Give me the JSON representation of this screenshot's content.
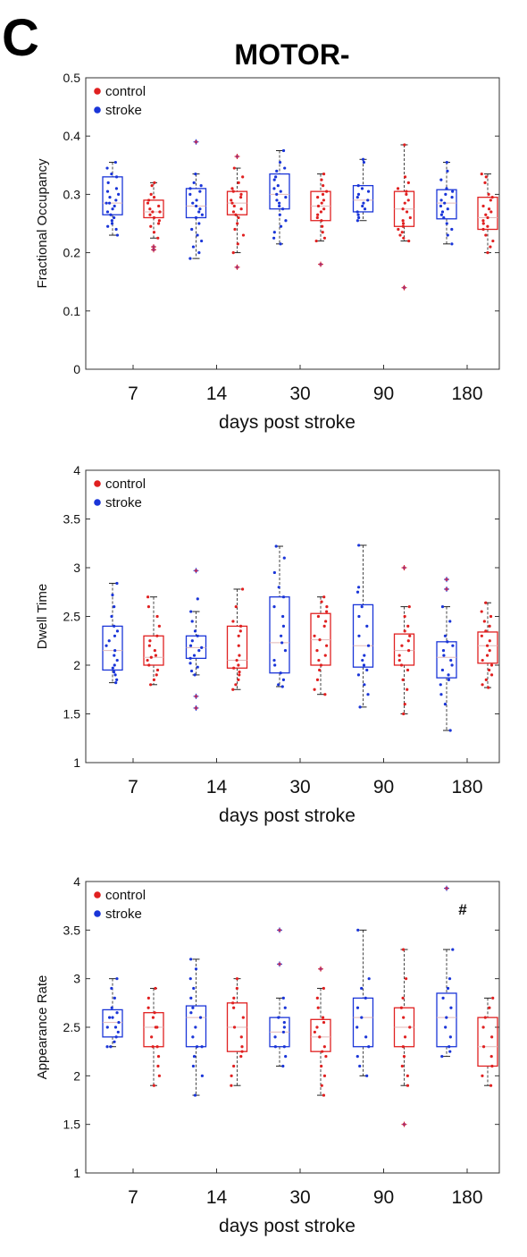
{
  "panel_label": "C",
  "title": "MOTOR-",
  "colors": {
    "control": "#e02020",
    "stroke": "#1a35d8"
  },
  "chart_data": [
    {
      "type": "box",
      "ylabel": "Fractional Occupancy",
      "xlabel": "days post stroke",
      "categories": [
        "7",
        "14",
        "30",
        "90",
        "180"
      ],
      "ylim": [
        0,
        0.5
      ],
      "yticks": [
        "0",
        "0.1",
        "0.2",
        "0.3",
        "0.4",
        "0.5"
      ],
      "legend": {
        "position": "top-left",
        "entries": [
          "control",
          "stroke"
        ]
      },
      "annotation": "",
      "groups": [
        {
          "category": "7",
          "series": "stroke",
          "q1": 0.265,
          "median": 0.285,
          "q3": 0.33,
          "whisker_low": 0.23,
          "whisker_high": 0.355,
          "outliers": [],
          "points": [
            0.355,
            0.345,
            0.335,
            0.33,
            0.32,
            0.31,
            0.305,
            0.3,
            0.295,
            0.29,
            0.285,
            0.285,
            0.28,
            0.275,
            0.27,
            0.265,
            0.26,
            0.255,
            0.25,
            0.245,
            0.24,
            0.23
          ]
        },
        {
          "category": "7",
          "series": "control",
          "q1": 0.26,
          "median": 0.27,
          "q3": 0.29,
          "whisker_low": 0.225,
          "whisker_high": 0.32,
          "outliers": [
            0.21,
            0.205
          ],
          "points": [
            0.32,
            0.315,
            0.3,
            0.295,
            0.29,
            0.285,
            0.28,
            0.275,
            0.27,
            0.27,
            0.265,
            0.26,
            0.255,
            0.25,
            0.245,
            0.235,
            0.225
          ]
        },
        {
          "category": "14",
          "series": "stroke",
          "q1": 0.26,
          "median": 0.28,
          "q3": 0.31,
          "whisker_low": 0.19,
          "whisker_high": 0.335,
          "outliers": [
            0.39
          ],
          "points": [
            0.335,
            0.32,
            0.315,
            0.31,
            0.305,
            0.3,
            0.29,
            0.285,
            0.28,
            0.275,
            0.27,
            0.265,
            0.26,
            0.25,
            0.24,
            0.23,
            0.22,
            0.21,
            0.2,
            0.19
          ]
        },
        {
          "category": "14",
          "series": "control",
          "q1": 0.265,
          "median": 0.285,
          "q3": 0.305,
          "whisker_low": 0.2,
          "whisker_high": 0.345,
          "outliers": [
            0.365,
            0.175
          ],
          "points": [
            0.345,
            0.33,
            0.32,
            0.31,
            0.305,
            0.3,
            0.295,
            0.29,
            0.285,
            0.28,
            0.275,
            0.27,
            0.265,
            0.26,
            0.25,
            0.24,
            0.23,
            0.215,
            0.2
          ]
        },
        {
          "category": "30",
          "series": "stroke",
          "q1": 0.275,
          "median": 0.3,
          "q3": 0.335,
          "whisker_low": 0.215,
          "whisker_high": 0.375,
          "outliers": [],
          "points": [
            0.375,
            0.355,
            0.345,
            0.34,
            0.33,
            0.325,
            0.315,
            0.31,
            0.305,
            0.3,
            0.295,
            0.29,
            0.285,
            0.28,
            0.275,
            0.265,
            0.255,
            0.245,
            0.235,
            0.225,
            0.215
          ]
        },
        {
          "category": "30",
          "series": "control",
          "q1": 0.255,
          "median": 0.28,
          "q3": 0.305,
          "whisker_low": 0.22,
          "whisker_high": 0.335,
          "outliers": [
            0.18
          ],
          "points": [
            0.335,
            0.325,
            0.315,
            0.305,
            0.3,
            0.295,
            0.29,
            0.285,
            0.28,
            0.275,
            0.27,
            0.265,
            0.26,
            0.255,
            0.245,
            0.235,
            0.225,
            0.22
          ]
        },
        {
          "category": "90",
          "series": "stroke",
          "q1": 0.27,
          "median": 0.29,
          "q3": 0.315,
          "whisker_low": 0.255,
          "whisker_high": 0.36,
          "outliers": [],
          "points": [
            0.36,
            0.355,
            0.315,
            0.31,
            0.305,
            0.3,
            0.295,
            0.29,
            0.285,
            0.28,
            0.275,
            0.27,
            0.265,
            0.26,
            0.255
          ]
        },
        {
          "category": "90",
          "series": "control",
          "q1": 0.245,
          "median": 0.275,
          "q3": 0.305,
          "whisker_low": 0.22,
          "whisker_high": 0.385,
          "outliers": [
            0.14
          ],
          "points": [
            0.385,
            0.33,
            0.32,
            0.31,
            0.305,
            0.3,
            0.29,
            0.285,
            0.275,
            0.27,
            0.26,
            0.255,
            0.25,
            0.245,
            0.24,
            0.235,
            0.23,
            0.225,
            0.22
          ]
        },
        {
          "category": "180",
          "series": "stroke",
          "q1": 0.258,
          "median": 0.285,
          "q3": 0.308,
          "whisker_low": 0.215,
          "whisker_high": 0.355,
          "outliers": [],
          "points": [
            0.355,
            0.34,
            0.325,
            0.31,
            0.305,
            0.3,
            0.295,
            0.29,
            0.285,
            0.28,
            0.275,
            0.27,
            0.265,
            0.26,
            0.25,
            0.24,
            0.23,
            0.215
          ]
        },
        {
          "category": "180",
          "series": "control",
          "q1": 0.24,
          "median": 0.26,
          "q3": 0.295,
          "whisker_low": 0.2,
          "whisker_high": 0.335,
          "outliers": [],
          "points": [
            0.335,
            0.33,
            0.32,
            0.3,
            0.295,
            0.29,
            0.28,
            0.275,
            0.27,
            0.265,
            0.26,
            0.255,
            0.25,
            0.245,
            0.24,
            0.23,
            0.22,
            0.21,
            0.2
          ]
        }
      ]
    },
    {
      "type": "box",
      "ylabel": "Dwell Time",
      "xlabel": "days post stroke",
      "categories": [
        "7",
        "14",
        "30",
        "90",
        "180"
      ],
      "ylim": [
        1,
        4
      ],
      "yticks": [
        "1",
        "1.5",
        "2",
        "2.5",
        "3",
        "3.5",
        "4"
      ],
      "legend": {
        "position": "top-left",
        "entries": [
          "control",
          "stroke"
        ]
      },
      "annotation": "",
      "groups": [
        {
          "category": "7",
          "series": "stroke",
          "q1": 1.95,
          "median": 2.15,
          "q3": 2.4,
          "whisker_low": 1.82,
          "whisker_high": 2.84,
          "outliers": [],
          "points": [
            2.84,
            2.72,
            2.6,
            2.5,
            2.4,
            2.35,
            2.3,
            2.25,
            2.2,
            2.15,
            2.1,
            2.05,
            2.0,
            1.97,
            1.93,
            1.9,
            1.85,
            1.82
          ]
        },
        {
          "category": "7",
          "series": "control",
          "q1": 2.0,
          "median": 2.08,
          "q3": 2.3,
          "whisker_low": 1.8,
          "whisker_high": 2.7,
          "outliers": [],
          "points": [
            2.7,
            2.6,
            2.5,
            2.4,
            2.3,
            2.25,
            2.2,
            2.15,
            2.1,
            2.08,
            2.05,
            2.0,
            1.95,
            1.9,
            1.85,
            1.8
          ]
        },
        {
          "category": "14",
          "series": "stroke",
          "q1": 2.07,
          "median": 2.18,
          "q3": 2.3,
          "whisker_low": 1.9,
          "whisker_high": 2.55,
          "outliers": [
            2.97,
            1.68,
            1.56
          ],
          "points": [
            2.68,
            2.55,
            2.45,
            2.35,
            2.3,
            2.25,
            2.2,
            2.18,
            2.15,
            2.1,
            2.07,
            2.02,
            1.98,
            1.94,
            1.9
          ]
        },
        {
          "category": "14",
          "series": "control",
          "q1": 1.97,
          "median": 2.05,
          "q3": 2.4,
          "whisker_low": 1.75,
          "whisker_high": 2.78,
          "outliers": [],
          "points": [
            2.78,
            2.6,
            2.45,
            2.4,
            2.35,
            2.3,
            2.2,
            2.1,
            2.05,
            2.0,
            1.97,
            1.93,
            1.9,
            1.85,
            1.8,
            1.75
          ]
        },
        {
          "category": "30",
          "series": "stroke",
          "q1": 1.92,
          "median": 2.23,
          "q3": 2.7,
          "whisker_low": 1.78,
          "whisker_high": 3.22,
          "outliers": [],
          "points": [
            3.22,
            3.1,
            2.95,
            2.8,
            2.7,
            2.6,
            2.5,
            2.4,
            2.3,
            2.23,
            2.15,
            2.05,
            2.0,
            1.92,
            1.85,
            1.8,
            1.78
          ]
        },
        {
          "category": "30",
          "series": "control",
          "q1": 2.0,
          "median": 2.26,
          "q3": 2.53,
          "whisker_low": 1.7,
          "whisker_high": 2.7,
          "outliers": [],
          "points": [
            2.7,
            2.65,
            2.6,
            2.55,
            2.5,
            2.45,
            2.4,
            2.3,
            2.26,
            2.2,
            2.15,
            2.1,
            2.05,
            2.0,
            1.95,
            1.85,
            1.75,
            1.7
          ]
        },
        {
          "category": "90",
          "series": "stroke",
          "q1": 1.98,
          "median": 2.2,
          "q3": 2.62,
          "whisker_low": 1.57,
          "whisker_high": 3.23,
          "outliers": [],
          "points": [
            3.23,
            2.8,
            2.75,
            2.6,
            2.5,
            2.4,
            2.3,
            2.2,
            2.1,
            2.05,
            2.0,
            1.95,
            1.9,
            1.8,
            1.7,
            1.57
          ]
        },
        {
          "category": "90",
          "series": "control",
          "q1": 2.0,
          "median": 2.15,
          "q3": 2.32,
          "whisker_low": 1.5,
          "whisker_high": 2.6,
          "outliers": [
            3.0
          ],
          "points": [
            2.6,
            2.5,
            2.4,
            2.35,
            2.3,
            2.25,
            2.2,
            2.15,
            2.1,
            2.05,
            2.0,
            1.95,
            1.85,
            1.75,
            1.6,
            1.5
          ]
        },
        {
          "category": "180",
          "series": "stroke",
          "q1": 1.87,
          "median": 2.08,
          "q3": 2.24,
          "whisker_low": 1.33,
          "whisker_high": 2.6,
          "outliers": [
            2.88,
            2.78
          ],
          "points": [
            2.6,
            2.45,
            2.3,
            2.24,
            2.2,
            2.15,
            2.1,
            2.05,
            2.0,
            1.95,
            1.9,
            1.85,
            1.8,
            1.7,
            1.6,
            1.33
          ]
        },
        {
          "category": "180",
          "series": "control",
          "q1": 2.02,
          "median": 2.2,
          "q3": 2.34,
          "whisker_low": 1.77,
          "whisker_high": 2.64,
          "outliers": [],
          "points": [
            2.64,
            2.55,
            2.5,
            2.45,
            2.4,
            2.35,
            2.3,
            2.25,
            2.2,
            2.15,
            2.1,
            2.05,
            2.0,
            1.95,
            1.9,
            1.85,
            1.8,
            1.77
          ]
        }
      ]
    },
    {
      "type": "box",
      "ylabel": "Appearance Rate",
      "xlabel": "days post stroke",
      "categories": [
        "7",
        "14",
        "30",
        "90",
        "180"
      ],
      "ylim": [
        1,
        4
      ],
      "yticks": [
        "1",
        "1.5",
        "2",
        "2.5",
        "3",
        "3.5",
        "4"
      ],
      "legend": {
        "position": "top-left",
        "entries": [
          "control",
          "stroke"
        ]
      },
      "annotation": "#",
      "groups": [
        {
          "category": "7",
          "series": "stroke",
          "q1": 2.4,
          "median": 2.55,
          "q3": 2.68,
          "whisker_low": 2.3,
          "whisker_high": 3.0,
          "outliers": [],
          "points": [
            3.0,
            2.9,
            2.8,
            2.7,
            2.65,
            2.6,
            2.6,
            2.55,
            2.5,
            2.5,
            2.45,
            2.4,
            2.35,
            2.3,
            2.3
          ]
        },
        {
          "category": "7",
          "series": "control",
          "q1": 2.3,
          "median": 2.5,
          "q3": 2.65,
          "whisker_low": 1.9,
          "whisker_high": 2.9,
          "outliers": [],
          "points": [
            2.9,
            2.8,
            2.7,
            2.65,
            2.6,
            2.5,
            2.5,
            2.4,
            2.3,
            2.3,
            2.2,
            2.1,
            2.0,
            1.9
          ]
        },
        {
          "category": "14",
          "series": "stroke",
          "q1": 2.3,
          "median": 2.6,
          "q3": 2.72,
          "whisker_low": 1.8,
          "whisker_high": 3.2,
          "outliers": [],
          "points": [
            3.2,
            3.1,
            3.0,
            2.9,
            2.8,
            2.7,
            2.65,
            2.6,
            2.5,
            2.4,
            2.3,
            2.3,
            2.2,
            2.1,
            2.0,
            1.8
          ]
        },
        {
          "category": "14",
          "series": "control",
          "q1": 2.25,
          "median": 2.5,
          "q3": 2.75,
          "whisker_low": 1.9,
          "whisker_high": 3.0,
          "outliers": [],
          "points": [
            3.0,
            2.9,
            2.8,
            2.75,
            2.7,
            2.6,
            2.5,
            2.4,
            2.3,
            2.25,
            2.2,
            2.1,
            2.0,
            1.9
          ]
        },
        {
          "category": "30",
          "series": "stroke",
          "q1": 2.3,
          "median": 2.45,
          "q3": 2.6,
          "whisker_low": 2.1,
          "whisker_high": 2.8,
          "outliers": [
            3.5,
            3.15
          ],
          "points": [
            2.8,
            2.7,
            2.6,
            2.55,
            2.5,
            2.45,
            2.4,
            2.3,
            2.3,
            2.2,
            2.1
          ]
        },
        {
          "category": "30",
          "series": "control",
          "q1": 2.25,
          "median": 2.4,
          "q3": 2.58,
          "whisker_low": 1.8,
          "whisker_high": 2.9,
          "outliers": [
            3.1
          ],
          "points": [
            2.9,
            2.8,
            2.7,
            2.6,
            2.55,
            2.5,
            2.45,
            2.4,
            2.3,
            2.25,
            2.2,
            2.1,
            2.0,
            1.9,
            1.8
          ]
        },
        {
          "category": "90",
          "series": "stroke",
          "q1": 2.3,
          "median": 2.6,
          "q3": 2.8,
          "whisker_low": 2.0,
          "whisker_high": 3.5,
          "outliers": [],
          "points": [
            3.5,
            3.0,
            2.9,
            2.8,
            2.7,
            2.6,
            2.5,
            2.4,
            2.3,
            2.2,
            2.1,
            2.0
          ]
        },
        {
          "category": "90",
          "series": "control",
          "q1": 2.3,
          "median": 2.5,
          "q3": 2.7,
          "whisker_low": 1.9,
          "whisker_high": 3.3,
          "outliers": [
            1.5
          ],
          "points": [
            3.3,
            3.0,
            2.8,
            2.7,
            2.6,
            2.5,
            2.4,
            2.3,
            2.2,
            2.1,
            2.0,
            1.9
          ]
        },
        {
          "category": "180",
          "series": "stroke",
          "q1": 2.3,
          "median": 2.6,
          "q3": 2.85,
          "whisker_low": 2.2,
          "whisker_high": 3.3,
          "outliers": [
            3.93
          ],
          "points": [
            3.3,
            3.0,
            2.9,
            2.8,
            2.7,
            2.6,
            2.5,
            2.4,
            2.3,
            2.25,
            2.2
          ]
        },
        {
          "category": "180",
          "series": "control",
          "q1": 2.1,
          "median": 2.3,
          "q3": 2.6,
          "whisker_low": 1.9,
          "whisker_high": 2.8,
          "outliers": [],
          "points": [
            2.8,
            2.7,
            2.6,
            2.5,
            2.4,
            2.3,
            2.2,
            2.1,
            2.0,
            1.9
          ]
        }
      ]
    }
  ]
}
